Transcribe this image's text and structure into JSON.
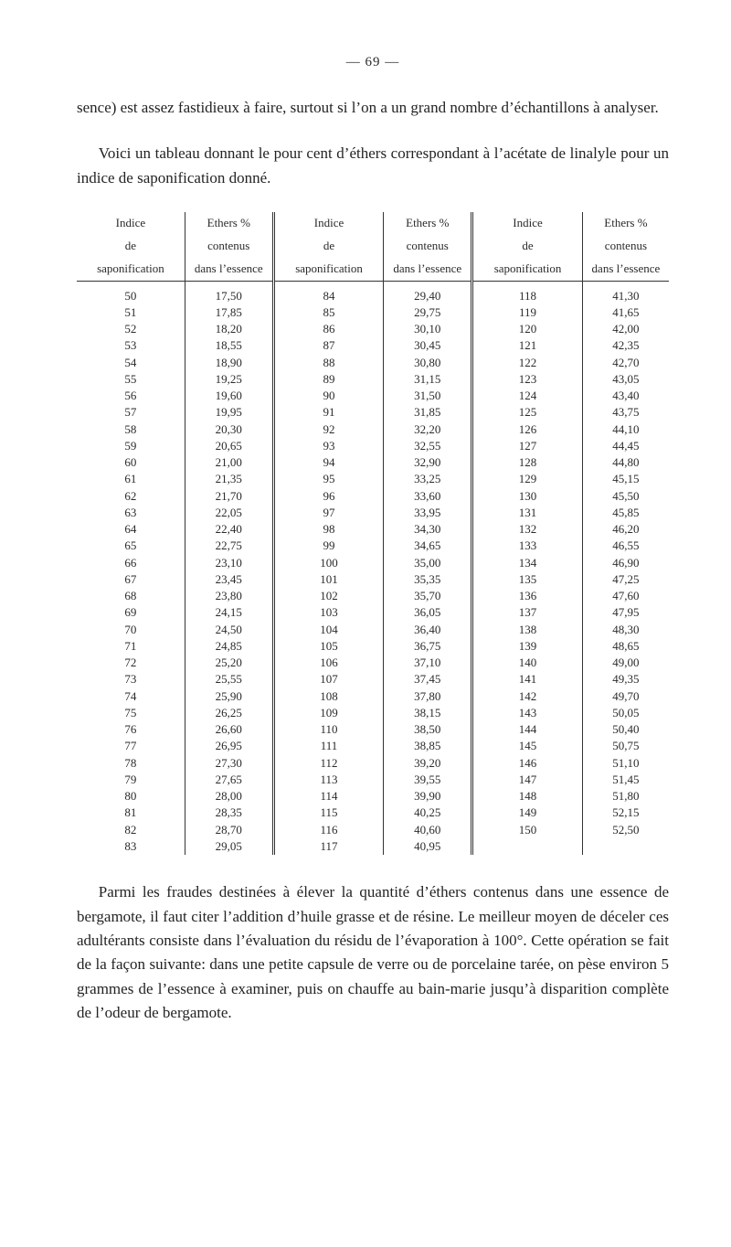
{
  "page_number_label": "— 69 —",
  "para1": "sence) est assez fastidieux à faire, surtout si l’on a un grand nombre d’échantillons à analyser.",
  "para2": "Voici un tableau donnant le pour cent d’éthers correspondant à l’acétate de linalyle pour un indice de saponification donné.",
  "para3": "Parmi les fraudes destinées à élever la quantité d’éthers contenus dans une essence de bergamote, il faut citer l’addition d’huile grasse et de résine. Le meilleur moyen de déceler ces adultérants consiste dans l’évaluation du résidu de l’évaporation à 100°. Cette opération se fait de la façon suivante: dans une petite capsule de verre ou de porcelaine tarée, on pèse environ 5 grammes de l’essence à examiner, puis on chauffe au bain-marie jusqu’à disparition complète de l’odeur de bergamote.",
  "headers": {
    "indice_line1": "Indice",
    "indice_line2": "de",
    "indice_line3": "saponification",
    "ethers_line1": "Ethers %",
    "ethers_line2": "contenus",
    "ethers_line3": "dans l’essence"
  },
  "rows": [
    [
      "50",
      "17,50",
      "84",
      "29,40",
      "118",
      "41,30"
    ],
    [
      "51",
      "17,85",
      "85",
      "29,75",
      "119",
      "41,65"
    ],
    [
      "52",
      "18,20",
      "86",
      "30,10",
      "120",
      "42,00"
    ],
    [
      "53",
      "18,55",
      "87",
      "30,45",
      "121",
      "42,35"
    ],
    [
      "54",
      "18,90",
      "88",
      "30,80",
      "122",
      "42,70"
    ],
    [
      "55",
      "19,25",
      "89",
      "31,15",
      "123",
      "43,05"
    ],
    [
      "56",
      "19,60",
      "90",
      "31,50",
      "124",
      "43,40"
    ],
    [
      "57",
      "19,95",
      "91",
      "31,85",
      "125",
      "43,75"
    ],
    [
      "58",
      "20,30",
      "92",
      "32,20",
      "126",
      "44,10"
    ],
    [
      "59",
      "20,65",
      "93",
      "32,55",
      "127",
      "44,45"
    ],
    [
      "60",
      "21,00",
      "94",
      "32,90",
      "128",
      "44,80"
    ],
    [
      "61",
      "21,35",
      "95",
      "33,25",
      "129",
      "45,15"
    ],
    [
      "62",
      "21,70",
      "96",
      "33,60",
      "130",
      "45,50"
    ],
    [
      "63",
      "22,05",
      "97",
      "33,95",
      "131",
      "45,85"
    ],
    [
      "64",
      "22,40",
      "98",
      "34,30",
      "132",
      "46,20"
    ],
    [
      "65",
      "22,75",
      "99",
      "34,65",
      "133",
      "46,55"
    ],
    [
      "66",
      "23,10",
      "100",
      "35,00",
      "134",
      "46,90"
    ],
    [
      "67",
      "23,45",
      "101",
      "35,35",
      "135",
      "47,25"
    ],
    [
      "68",
      "23,80",
      "102",
      "35,70",
      "136",
      "47,60"
    ],
    [
      "69",
      "24,15",
      "103",
      "36,05",
      "137",
      "47,95"
    ],
    [
      "70",
      "24,50",
      "104",
      "36,40",
      "138",
      "48,30"
    ],
    [
      "71",
      "24,85",
      "105",
      "36,75",
      "139",
      "48,65"
    ],
    [
      "72",
      "25,20",
      "106",
      "37,10",
      "140",
      "49,00"
    ],
    [
      "73",
      "25,55",
      "107",
      "37,45",
      "141",
      "49,35"
    ],
    [
      "74",
      "25,90",
      "108",
      "37,80",
      "142",
      "49,70"
    ],
    [
      "75",
      "26,25",
      "109",
      "38,15",
      "143",
      "50,05"
    ],
    [
      "76",
      "26,60",
      "110",
      "38,50",
      "144",
      "50,40"
    ],
    [
      "77",
      "26,95",
      "111",
      "38,85",
      "145",
      "50,75"
    ],
    [
      "78",
      "27,30",
      "112",
      "39,20",
      "146",
      "51,10"
    ],
    [
      "79",
      "27,65",
      "113",
      "39,55",
      "147",
      "51,45"
    ],
    [
      "80",
      "28,00",
      "114",
      "39,90",
      "148",
      "51,80"
    ],
    [
      "81",
      "28,35",
      "115",
      "40,25",
      "149",
      "52,15"
    ],
    [
      "82",
      "28,70",
      "116",
      "40,60",
      "150",
      "52,50"
    ],
    [
      "83",
      "29,05",
      "117",
      "40,95",
      "",
      ""
    ]
  ]
}
